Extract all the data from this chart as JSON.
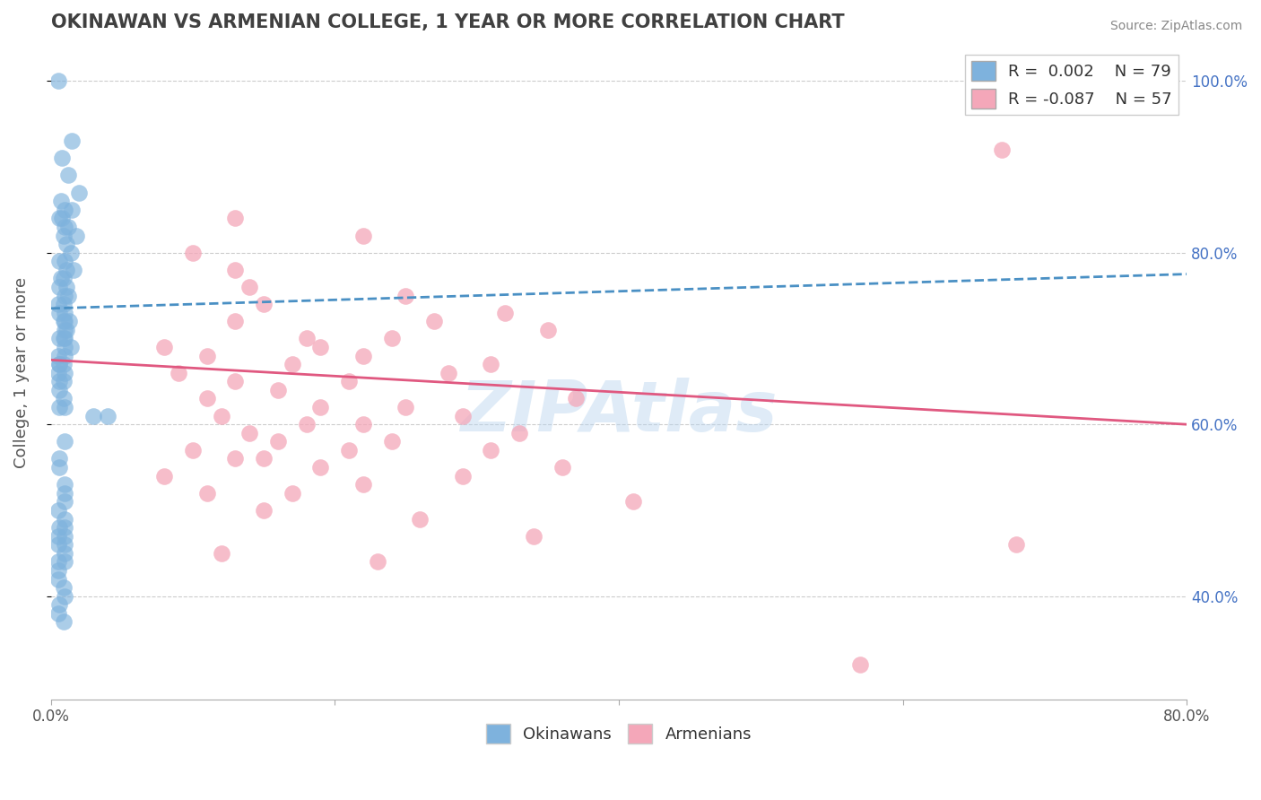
{
  "title": "OKINAWAN VS ARMENIAN COLLEGE, 1 YEAR OR MORE CORRELATION CHART",
  "source": "Source: ZipAtlas.com",
  "ylabel": "College, 1 year or more",
  "xlim": [
    0.0,
    0.8
  ],
  "ylim": [
    0.28,
    1.04
  ],
  "xticks": [
    0.0,
    0.2,
    0.4,
    0.6,
    0.8
  ],
  "xticklabels": [
    "0.0%",
    "",
    "",
    "",
    "80.0%"
  ],
  "yticks_right": [
    0.4,
    0.6,
    0.8,
    1.0
  ],
  "yticklabels_right": [
    "40.0%",
    "60.0%",
    "80.0%",
    "100.0%"
  ],
  "legend_R_blue": "0.002",
  "legend_N_blue": "79",
  "legend_R_pink": "-0.087",
  "legend_N_pink": "57",
  "blue_color": "#7EB2DD",
  "pink_color": "#F4A7B9",
  "blue_line_color": "#4a90c4",
  "pink_line_color": "#E05880",
  "watermark": "ZIPAtlas",
  "okinawan_x": [
    0.005,
    0.015,
    0.008,
    0.012,
    0.02,
    0.007,
    0.01,
    0.015,
    0.008,
    0.006,
    0.01,
    0.012,
    0.018,
    0.009,
    0.011,
    0.014,
    0.006,
    0.01,
    0.011,
    0.016,
    0.009,
    0.007,
    0.011,
    0.006,
    0.01,
    0.012,
    0.005,
    0.009,
    0.006,
    0.01,
    0.009,
    0.013,
    0.01,
    0.011,
    0.01,
    0.006,
    0.01,
    0.009,
    0.014,
    0.01,
    0.005,
    0.01,
    0.006,
    0.009,
    0.006,
    0.005,
    0.01,
    0.009,
    0.006,
    0.006,
    0.009,
    0.006,
    0.01,
    0.04,
    0.03,
    0.01,
    0.006,
    0.006,
    0.01,
    0.01,
    0.01,
    0.005,
    0.01,
    0.006,
    0.01,
    0.01,
    0.005,
    0.005,
    0.01,
    0.01,
    0.005,
    0.01,
    0.005,
    0.005,
    0.009,
    0.01,
    0.006,
    0.005,
    0.009
  ],
  "okinawan_y": [
    1.0,
    0.93,
    0.91,
    0.89,
    0.87,
    0.86,
    0.85,
    0.85,
    0.84,
    0.84,
    0.83,
    0.83,
    0.82,
    0.82,
    0.81,
    0.8,
    0.79,
    0.79,
    0.78,
    0.78,
    0.77,
    0.77,
    0.76,
    0.76,
    0.75,
    0.75,
    0.74,
    0.74,
    0.73,
    0.73,
    0.72,
    0.72,
    0.72,
    0.71,
    0.71,
    0.7,
    0.7,
    0.7,
    0.69,
    0.69,
    0.68,
    0.68,
    0.67,
    0.67,
    0.67,
    0.66,
    0.66,
    0.65,
    0.65,
    0.64,
    0.63,
    0.62,
    0.62,
    0.61,
    0.61,
    0.58,
    0.56,
    0.55,
    0.53,
    0.52,
    0.51,
    0.5,
    0.49,
    0.48,
    0.48,
    0.47,
    0.47,
    0.46,
    0.46,
    0.45,
    0.44,
    0.44,
    0.43,
    0.42,
    0.41,
    0.4,
    0.39,
    0.38,
    0.37
  ],
  "armenian_x": [
    0.67,
    0.13,
    0.22,
    0.1,
    0.13,
    0.14,
    0.25,
    0.15,
    0.32,
    0.13,
    0.27,
    0.35,
    0.18,
    0.24,
    0.08,
    0.19,
    0.11,
    0.22,
    0.31,
    0.17,
    0.28,
    0.09,
    0.13,
    0.21,
    0.16,
    0.37,
    0.11,
    0.19,
    0.25,
    0.12,
    0.29,
    0.18,
    0.22,
    0.14,
    0.33,
    0.16,
    0.24,
    0.1,
    0.21,
    0.31,
    0.15,
    0.13,
    0.19,
    0.36,
    0.08,
    0.29,
    0.22,
    0.11,
    0.17,
    0.41,
    0.15,
    0.26,
    0.34,
    0.68,
    0.12,
    0.23,
    0.57
  ],
  "armenian_y": [
    0.92,
    0.84,
    0.82,
    0.8,
    0.78,
    0.76,
    0.75,
    0.74,
    0.73,
    0.72,
    0.72,
    0.71,
    0.7,
    0.7,
    0.69,
    0.69,
    0.68,
    0.68,
    0.67,
    0.67,
    0.66,
    0.66,
    0.65,
    0.65,
    0.64,
    0.63,
    0.63,
    0.62,
    0.62,
    0.61,
    0.61,
    0.6,
    0.6,
    0.59,
    0.59,
    0.58,
    0.58,
    0.57,
    0.57,
    0.57,
    0.56,
    0.56,
    0.55,
    0.55,
    0.54,
    0.54,
    0.53,
    0.52,
    0.52,
    0.51,
    0.5,
    0.49,
    0.47,
    0.46,
    0.45,
    0.44,
    0.32
  ],
  "background_color": "#ffffff",
  "grid_color": "#cccccc",
  "title_color": "#404040",
  "source_color": "#888888",
  "blue_trend_start_y": 0.735,
  "blue_trend_end_y": 0.775,
  "pink_trend_start_y": 0.675,
  "pink_trend_end_y": 0.6
}
